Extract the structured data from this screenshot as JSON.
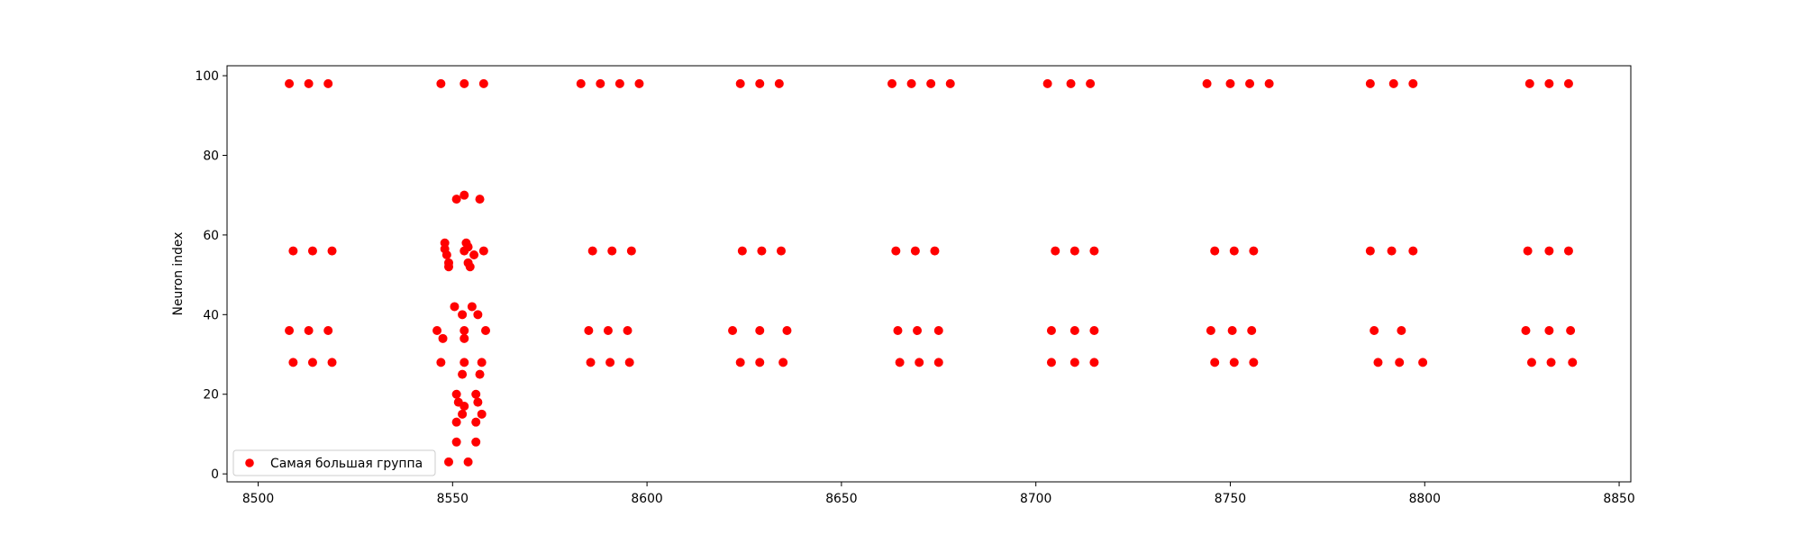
{
  "chart_data": {
    "type": "scatter",
    "title": "",
    "xlabel": "",
    "ylabel": "Neuron index",
    "xlim": [
      8492,
      8853
    ],
    "ylim": [
      -2,
      102.5
    ],
    "xticks": [
      8500,
      8550,
      8600,
      8650,
      8700,
      8750,
      8800,
      8850
    ],
    "yticks": [
      0,
      20,
      40,
      60,
      80,
      100
    ],
    "grid": false,
    "legend_position": "lower-left",
    "series": [
      {
        "name": "Самая большая группа",
        "color": "#ff0000",
        "points": [
          [
            8508,
            98
          ],
          [
            8513,
            98
          ],
          [
            8518,
            98
          ],
          [
            8509,
            56
          ],
          [
            8514,
            56
          ],
          [
            8519,
            56
          ],
          [
            8508,
            36
          ],
          [
            8513,
            36
          ],
          [
            8518,
            36
          ],
          [
            8509,
            28
          ],
          [
            8514,
            28
          ],
          [
            8519,
            28
          ],
          [
            8547,
            98
          ],
          [
            8553,
            98
          ],
          [
            8558,
            98
          ],
          [
            8551,
            69
          ],
          [
            8553,
            70
          ],
          [
            8557,
            69
          ],
          [
            8548,
            58
          ],
          [
            8548,
            56.5
          ],
          [
            8548.5,
            55
          ],
          [
            8549,
            53
          ],
          [
            8549,
            52
          ],
          [
            8553,
            56
          ],
          [
            8554,
            57
          ],
          [
            8553.5,
            58
          ],
          [
            8554,
            53
          ],
          [
            8554.5,
            52
          ],
          [
            8555.5,
            55
          ],
          [
            8558,
            56
          ],
          [
            8550.5,
            42
          ],
          [
            8552.5,
            40
          ],
          [
            8555,
            42
          ],
          [
            8556.5,
            40
          ],
          [
            8546,
            36
          ],
          [
            8547.5,
            34
          ],
          [
            8553,
            36
          ],
          [
            8553,
            34
          ],
          [
            8558.5,
            36
          ],
          [
            8547,
            28
          ],
          [
            8553,
            28
          ],
          [
            8557.5,
            28
          ],
          [
            8552.5,
            25
          ],
          [
            8557,
            25
          ],
          [
            8551,
            20
          ],
          [
            8556,
            20
          ],
          [
            8551.5,
            18
          ],
          [
            8553,
            17
          ],
          [
            8556.5,
            18
          ],
          [
            8552.5,
            15
          ],
          [
            8557.5,
            15
          ],
          [
            8551,
            13
          ],
          [
            8556,
            13
          ],
          [
            8551,
            8
          ],
          [
            8556,
            8
          ],
          [
            8549,
            3
          ],
          [
            8554,
            3
          ],
          [
            8583,
            98
          ],
          [
            8588,
            98
          ],
          [
            8593,
            98
          ],
          [
            8598,
            98
          ],
          [
            8586,
            56
          ],
          [
            8591,
            56
          ],
          [
            8596,
            56
          ],
          [
            8585,
            36
          ],
          [
            8590,
            36
          ],
          [
            8595,
            36
          ],
          [
            8585.5,
            28
          ],
          [
            8590.5,
            28
          ],
          [
            8595.5,
            28
          ],
          [
            8624,
            98
          ],
          [
            8629,
            98
          ],
          [
            8634,
            98
          ],
          [
            8624.5,
            56
          ],
          [
            8629.5,
            56
          ],
          [
            8634.5,
            56
          ],
          [
            8622,
            36
          ],
          [
            8629,
            36
          ],
          [
            8636,
            36
          ],
          [
            8624,
            28
          ],
          [
            8629,
            28
          ],
          [
            8635,
            28
          ],
          [
            8663,
            98
          ],
          [
            8668,
            98
          ],
          [
            8673,
            98
          ],
          [
            8678,
            98
          ],
          [
            8664,
            56
          ],
          [
            8669,
            56
          ],
          [
            8674,
            56
          ],
          [
            8664.5,
            36
          ],
          [
            8669.5,
            36
          ],
          [
            8675,
            36
          ],
          [
            8665,
            28
          ],
          [
            8670,
            28
          ],
          [
            8675,
            28
          ],
          [
            8703,
            98
          ],
          [
            8709,
            98
          ],
          [
            8714,
            98
          ],
          [
            8705,
            56
          ],
          [
            8710,
            56
          ],
          [
            8715,
            56
          ],
          [
            8704,
            36
          ],
          [
            8710,
            36
          ],
          [
            8715,
            36
          ],
          [
            8704,
            28
          ],
          [
            8710,
            28
          ],
          [
            8715,
            28
          ],
          [
            8744,
            98
          ],
          [
            8750,
            98
          ],
          [
            8755,
            98
          ],
          [
            8760,
            98
          ],
          [
            8746,
            56
          ],
          [
            8751,
            56
          ],
          [
            8756,
            56
          ],
          [
            8745,
            36
          ],
          [
            8750.5,
            36
          ],
          [
            8755.5,
            36
          ],
          [
            8746,
            28
          ],
          [
            8751,
            28
          ],
          [
            8756,
            28
          ],
          [
            8786,
            98
          ],
          [
            8792,
            98
          ],
          [
            8797,
            98
          ],
          [
            8786,
            56
          ],
          [
            8791.5,
            56
          ],
          [
            8797,
            56
          ],
          [
            8787,
            36
          ],
          [
            8794,
            36
          ],
          [
            8788,
            28
          ],
          [
            8793.5,
            28
          ],
          [
            8799.5,
            28
          ],
          [
            8827,
            98
          ],
          [
            8832,
            98
          ],
          [
            8837,
            98
          ],
          [
            8826.5,
            56
          ],
          [
            8832,
            56
          ],
          [
            8837,
            56
          ],
          [
            8826,
            36
          ],
          [
            8832,
            36
          ],
          [
            8837.5,
            36
          ],
          [
            8827.5,
            28
          ],
          [
            8832.5,
            28
          ],
          [
            8838,
            28
          ]
        ]
      }
    ]
  }
}
